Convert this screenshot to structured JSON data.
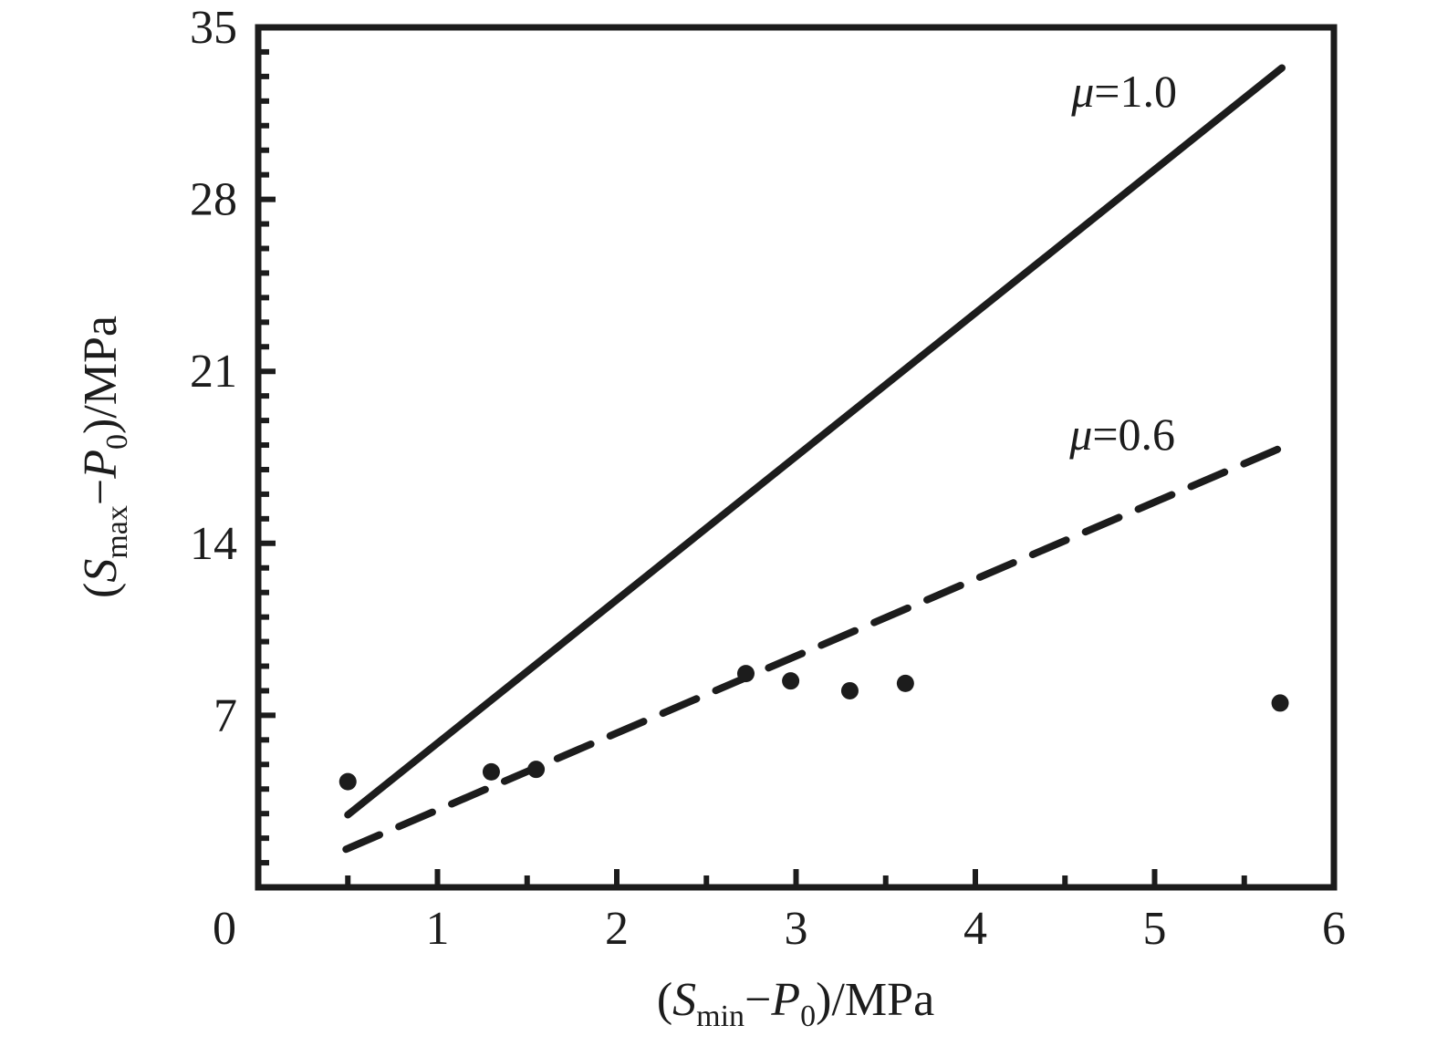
{
  "figure": {
    "background": "#ffffff",
    "ink_color": "#1c1c1c",
    "description": "Scatter plot of minimum vs maximum effective stress with frictional limit lines"
  },
  "chart_data": {
    "type": "scatter",
    "title": "",
    "xlabel_parts": {
      "pre": "(",
      "var1": "S",
      "sub1": "min",
      "minus": "−",
      "var2": "P",
      "sub2": "0",
      "post": ")/MPa"
    },
    "ylabel_parts": {
      "pre": "(",
      "var1": "S",
      "sub1": "max",
      "minus": "−",
      "var2": "P",
      "sub2": "0",
      "post": ")/MPa"
    },
    "xlim": [
      0,
      6
    ],
    "ylim": [
      0,
      35
    ],
    "x_major_ticks": [
      0,
      1,
      2,
      3,
      4,
      5,
      6
    ],
    "x_tick_labels": [
      "0",
      "1",
      "2",
      "3",
      "4",
      "5",
      "6"
    ],
    "x_minor_step": 0.5,
    "y_major_ticks": [
      7,
      14,
      21,
      28,
      35
    ],
    "y_tick_labels": [
      "7",
      "14",
      "21",
      "28",
      "35"
    ],
    "y_minor_step": 1,
    "grid": false,
    "legend_position": "none",
    "points": [
      [
        0.5,
        4.3
      ],
      [
        1.3,
        4.7
      ],
      [
        1.55,
        4.8
      ],
      [
        2.72,
        8.7
      ],
      [
        2.97,
        8.4
      ],
      [
        3.3,
        8.0
      ],
      [
        3.61,
        8.3
      ],
      [
        5.7,
        7.5
      ]
    ],
    "lines": [
      {
        "name": "mu-1.0",
        "style": "solid",
        "slope": 5.83,
        "x1": 0.5,
        "y1": 2.95,
        "x2": 5.71,
        "y2": 33.35,
        "label": {
          "sym": "μ",
          "rest": "=1.0"
        },
        "label_pos": [
          4.83,
          32.4
        ]
      },
      {
        "name": "mu-0.6",
        "style": "dashed",
        "slope": 3.12,
        "x1": 0.49,
        "y1": 1.55,
        "x2": 5.71,
        "y2": 17.9,
        "label": {
          "sym": "μ",
          "rest": "=0.6"
        },
        "label_pos": [
          4.82,
          18.45
        ]
      }
    ]
  }
}
